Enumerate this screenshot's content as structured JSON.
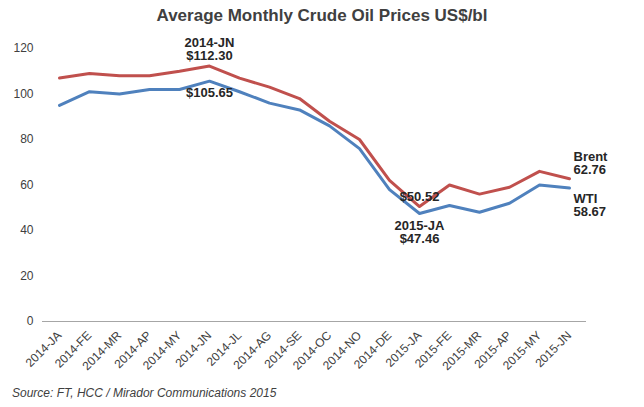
{
  "chart_data": {
    "type": "line",
    "title": "Average Monthly Crude Oil Prices US$/bl",
    "source": "Source: FT, HCC / Mirador Communications 2015",
    "categories": [
      "2014-JA",
      "2014-FE",
      "2014-MR",
      "2014-AP",
      "2014-MY",
      "2014-JN",
      "2014-JL",
      "2014-AG",
      "2014-SE",
      "2014-OC",
      "2014-NO",
      "2014-DE",
      "2015-JA",
      "2015-FE",
      "2015-MR",
      "2015-AP",
      "2015-MY",
      "2015-JN"
    ],
    "series": [
      {
        "name": "Brent",
        "color": "#c0504d",
        "values": [
          107,
          109,
          108,
          108,
          110,
          112.3,
          107,
          103,
          98,
          88,
          80,
          62,
          50.52,
          60,
          56,
          59,
          66,
          62.76
        ]
      },
      {
        "name": "WTI",
        "color": "#4f81bd",
        "values": [
          95,
          101,
          100,
          102,
          102,
          105.65,
          101,
          96,
          93,
          86,
          76,
          58,
          47.46,
          51,
          48,
          52,
          60,
          58.67
        ]
      }
    ],
    "ylim": [
      0,
      120
    ],
    "yticks": [
      0,
      20,
      40,
      60,
      80,
      100,
      120
    ],
    "grid": false,
    "annotations": [
      {
        "series": "Brent",
        "x": "2014-JN",
        "text": [
          "2014-JN",
          "$112.30"
        ]
      },
      {
        "series": "WTI",
        "x": "2014-JN",
        "text": [
          "$105.65"
        ]
      },
      {
        "series": "Brent",
        "x": "2015-JA",
        "text": [
          "$50.52"
        ]
      },
      {
        "series": "WTI",
        "x": "2015-JA",
        "text": [
          "2015-JA",
          "$47.46"
        ]
      },
      {
        "series": "Brent",
        "x": "2015-JN",
        "text": [
          "Brent",
          "62.76"
        ]
      },
      {
        "series": "WTI",
        "x": "2015-JN",
        "text": [
          "WTI",
          "58.67"
        ]
      }
    ]
  }
}
